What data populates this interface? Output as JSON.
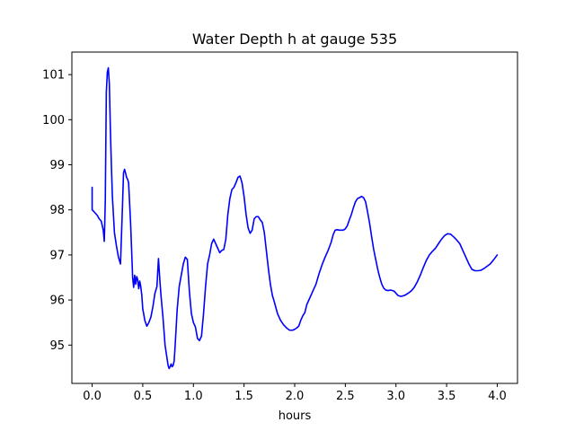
{
  "chart_data": {
    "type": "line",
    "title": "Water Depth h at gauge 535",
    "xlabel": "hours",
    "ylabel": "",
    "xlim": [
      -0.2,
      4.2
    ],
    "ylim": [
      94.15,
      101.5
    ],
    "grid": false,
    "xticks": [
      0.0,
      0.5,
      1.0,
      1.5,
      2.0,
      2.5,
      3.0,
      3.5,
      4.0
    ],
    "xtick_labels": [
      "0.0",
      "0.5",
      "1.0",
      "1.5",
      "2.0",
      "2.5",
      "3.0",
      "3.5",
      "4.0"
    ],
    "yticks": [
      95,
      96,
      97,
      98,
      99,
      100,
      101
    ],
    "ytick_labels": [
      "95",
      "96",
      "97",
      "98",
      "99",
      "100",
      "101"
    ],
    "series": [
      {
        "color": "#0000ff",
        "x": [
          0.0,
          0.0,
          0.01,
          0.03,
          0.05,
          0.07,
          0.09,
          0.11,
          0.12,
          0.13,
          0.14,
          0.15,
          0.16,
          0.17,
          0.18,
          0.19,
          0.2,
          0.22,
          0.24,
          0.26,
          0.28,
          0.3,
          0.31,
          0.32,
          0.33,
          0.34,
          0.35,
          0.36,
          0.38,
          0.4,
          0.41,
          0.42,
          0.43,
          0.44,
          0.45,
          0.46,
          0.47,
          0.48,
          0.49,
          0.5,
          0.51,
          0.52,
          0.54,
          0.56,
          0.58,
          0.6,
          0.62,
          0.64,
          0.655,
          0.67,
          0.68,
          0.7,
          0.72,
          0.74,
          0.75,
          0.76,
          0.77,
          0.78,
          0.79,
          0.8,
          0.81,
          0.82,
          0.84,
          0.86,
          0.88,
          0.9,
          0.92,
          0.94,
          0.96,
          0.98,
          1.0,
          1.02,
          1.04,
          1.06,
          1.08,
          1.1,
          1.12,
          1.14,
          1.16,
          1.18,
          1.2,
          1.22,
          1.24,
          1.26,
          1.28,
          1.3,
          1.32,
          1.34,
          1.36,
          1.38,
          1.4,
          1.42,
          1.44,
          1.46,
          1.48,
          1.5,
          1.52,
          1.54,
          1.56,
          1.58,
          1.6,
          1.62,
          1.64,
          1.66,
          1.68,
          1.7,
          1.72,
          1.74,
          1.76,
          1.78,
          1.8,
          1.83,
          1.86,
          1.89,
          1.92,
          1.95,
          1.98,
          2.0,
          2.02,
          2.04,
          2.06,
          2.08,
          2.1,
          2.12,
          2.15,
          2.18,
          2.21,
          2.24,
          2.27,
          2.3,
          2.33,
          2.36,
          2.38,
          2.4,
          2.42,
          2.44,
          2.46,
          2.48,
          2.5,
          2.52,
          2.54,
          2.56,
          2.58,
          2.6,
          2.62,
          2.64,
          2.66,
          2.68,
          2.7,
          2.72,
          2.74,
          2.76,
          2.78,
          2.8,
          2.82,
          2.84,
          2.86,
          2.88,
          2.9,
          2.92,
          2.95,
          2.98,
          3.0,
          3.02,
          3.05,
          3.08,
          3.1,
          3.12,
          3.15,
          3.18,
          3.21,
          3.24,
          3.27,
          3.3,
          3.33,
          3.36,
          3.39,
          3.42,
          3.45,
          3.48,
          3.51,
          3.54,
          3.57,
          3.6,
          3.63,
          3.66,
          3.69,
          3.72,
          3.75,
          3.78,
          3.81,
          3.84,
          3.87,
          3.9,
          3.93,
          3.96,
          4.0
        ],
        "y": [
          98.5,
          98.0,
          97.98,
          97.93,
          97.88,
          97.8,
          97.75,
          97.55,
          97.3,
          98.2,
          100.6,
          101.05,
          101.15,
          100.8,
          99.8,
          99.0,
          98.3,
          97.5,
          97.2,
          96.95,
          96.8,
          98.1,
          98.82,
          98.9,
          98.82,
          98.72,
          98.68,
          98.6,
          97.7,
          96.5,
          96.28,
          96.55,
          96.35,
          96.52,
          96.45,
          96.25,
          96.42,
          96.3,
          96.12,
          95.8,
          95.68,
          95.55,
          95.42,
          95.5,
          95.62,
          95.85,
          96.15,
          96.3,
          96.92,
          96.4,
          96.1,
          95.6,
          95.0,
          94.7,
          94.55,
          94.48,
          94.52,
          94.58,
          94.52,
          94.55,
          94.65,
          95.0,
          95.8,
          96.3,
          96.55,
          96.8,
          96.95,
          96.9,
          96.2,
          95.7,
          95.5,
          95.4,
          95.15,
          95.1,
          95.2,
          95.7,
          96.3,
          96.8,
          97.0,
          97.25,
          97.35,
          97.25,
          97.15,
          97.05,
          97.1,
          97.12,
          97.35,
          97.9,
          98.25,
          98.45,
          98.5,
          98.6,
          98.72,
          98.75,
          98.6,
          98.3,
          97.9,
          97.6,
          97.48,
          97.55,
          97.8,
          97.85,
          97.85,
          97.78,
          97.72,
          97.5,
          97.1,
          96.7,
          96.35,
          96.1,
          95.95,
          95.7,
          95.55,
          95.45,
          95.38,
          95.33,
          95.33,
          95.35,
          95.38,
          95.42,
          95.55,
          95.65,
          95.72,
          95.9,
          96.05,
          96.2,
          96.35,
          96.58,
          96.78,
          96.95,
          97.1,
          97.28,
          97.45,
          97.55,
          97.56,
          97.55,
          97.55,
          97.55,
          97.58,
          97.65,
          97.78,
          97.9,
          98.05,
          98.18,
          98.25,
          98.27,
          98.3,
          98.27,
          98.18,
          97.95,
          97.7,
          97.4,
          97.12,
          96.9,
          96.68,
          96.5,
          96.35,
          96.26,
          96.22,
          96.21,
          96.22,
          96.2,
          96.15,
          96.1,
          96.08,
          96.1,
          96.12,
          96.15,
          96.2,
          96.28,
          96.4,
          96.55,
          96.72,
          96.88,
          97.0,
          97.08,
          97.15,
          97.25,
          97.35,
          97.43,
          97.47,
          97.46,
          97.4,
          97.33,
          97.25,
          97.1,
          96.95,
          96.8,
          96.68,
          96.65,
          96.65,
          96.66,
          96.7,
          96.75,
          96.8,
          96.88,
          97.0
        ]
      }
    ]
  }
}
